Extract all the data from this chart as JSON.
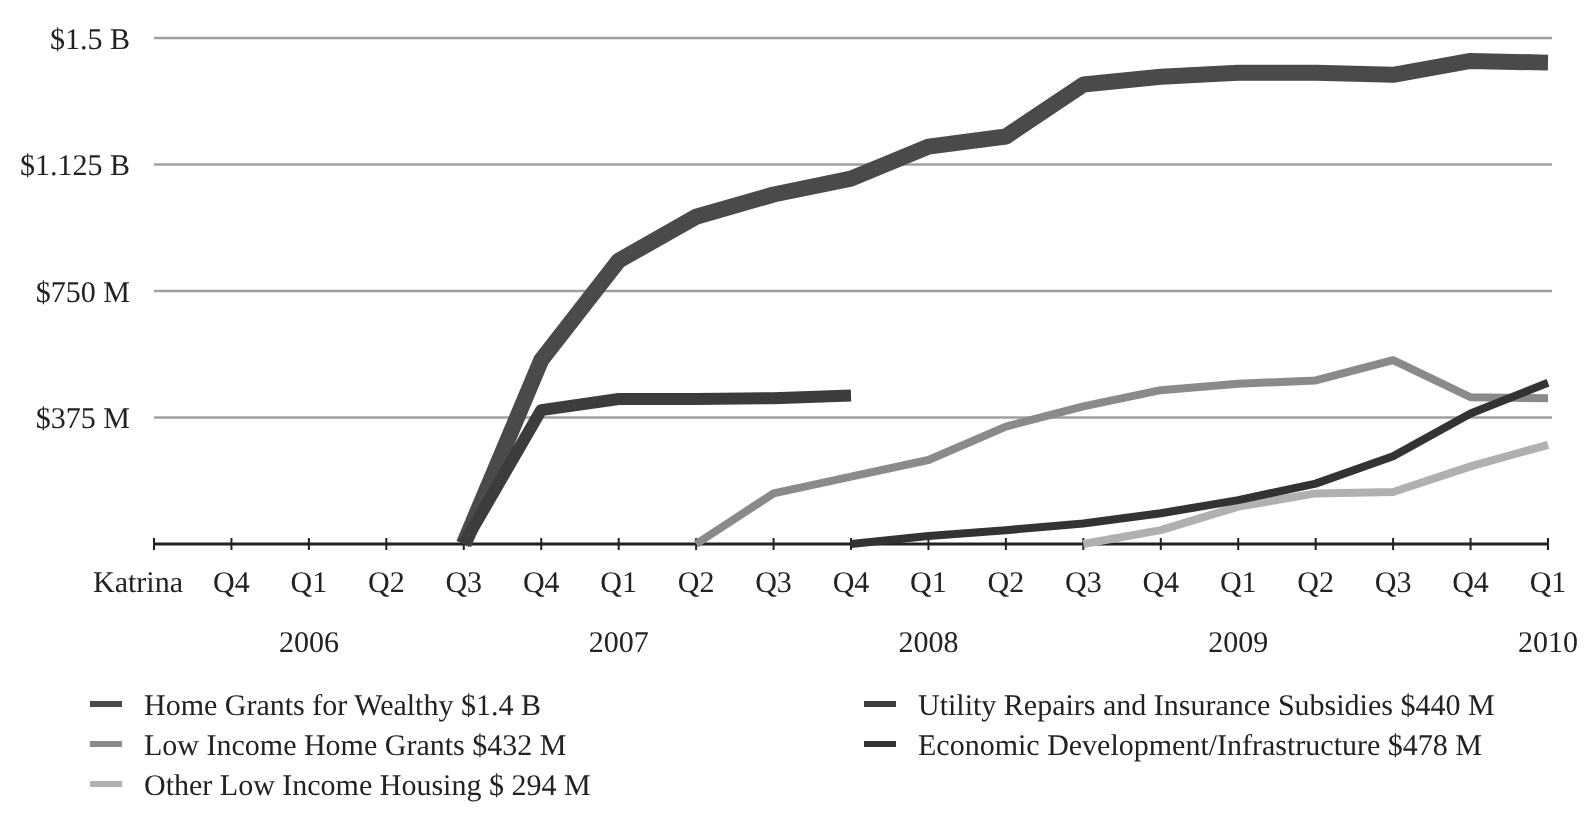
{
  "chart_data": {
    "type": "line",
    "categories": [
      "Katrina",
      "Q4",
      "Q1",
      "Q2",
      "Q3",
      "Q4",
      "Q1",
      "Q2",
      "Q3",
      "Q4",
      "Q1",
      "Q2",
      "Q3",
      "Q4",
      "Q1",
      "Q2",
      "Q3",
      "Q4",
      "Q1"
    ],
    "series": [
      {
        "name": "Home Grants for Wealthy $1.4 B",
        "color": "#4a4a4a",
        "values": [
          null,
          null,
          null,
          null,
          0,
          545000000,
          840000000,
          970000000,
          1036000000,
          1083000000,
          1178000000,
          1208000000,
          1362000000,
          1385000000,
          1397000000,
          1397000000,
          1391000000,
          1432000000,
          1427000000
        ]
      },
      {
        "name": "Low Income Home Grants $432 M",
        "color": "#8a8a8a",
        "values": [
          null,
          null,
          null,
          null,
          null,
          null,
          null,
          0,
          150000000,
          200000000,
          249000000,
          348000000,
          408000000,
          456000000,
          475000000,
          485000000,
          545000000,
          435000000,
          432000000
        ]
      },
      {
        "name": "Other Low Income Housing $ 294 M",
        "color": "#b0b0b0",
        "values": [
          null,
          null,
          null,
          null,
          null,
          null,
          null,
          null,
          null,
          null,
          null,
          null,
          0,
          41000000,
          111000000,
          150000000,
          154000000,
          230000000,
          294000000
        ]
      },
      {
        "name": "Utility Repairs and Insurance Subsidies $440 M",
        "color": "#3c3c3c",
        "values": [
          null,
          null,
          null,
          null,
          0,
          397000000,
          430000000,
          430000000,
          432000000,
          440000000,
          null,
          null,
          null,
          null,
          null,
          null,
          null,
          null,
          null
        ]
      },
      {
        "name": "Economic Development/Infrastructure $478 M",
        "color": "#333333",
        "values": [
          null,
          null,
          null,
          null,
          null,
          null,
          null,
          null,
          null,
          0,
          24000000,
          41000000,
          61000000,
          91000000,
          130000000,
          179000000,
          260000000,
          387000000,
          478000000
        ]
      }
    ],
    "ylim": [
      0,
      1500000000
    ],
    "yticks": [
      {
        "value": 0,
        "label": null
      },
      {
        "value": 375000000,
        "label": "$375 M"
      },
      {
        "value": 750000000,
        "label": "$750 M"
      },
      {
        "value": 1125000000,
        "label": "$1.125 B"
      },
      {
        "value": 1500000000,
        "label": "$1.5 B"
      }
    ],
    "grid": "y",
    "legend": "bottom",
    "marker": "none",
    "line_style": "solid",
    "annotations": [
      "2006",
      "2007",
      "2008",
      "2009",
      "2010"
    ]
  }
}
